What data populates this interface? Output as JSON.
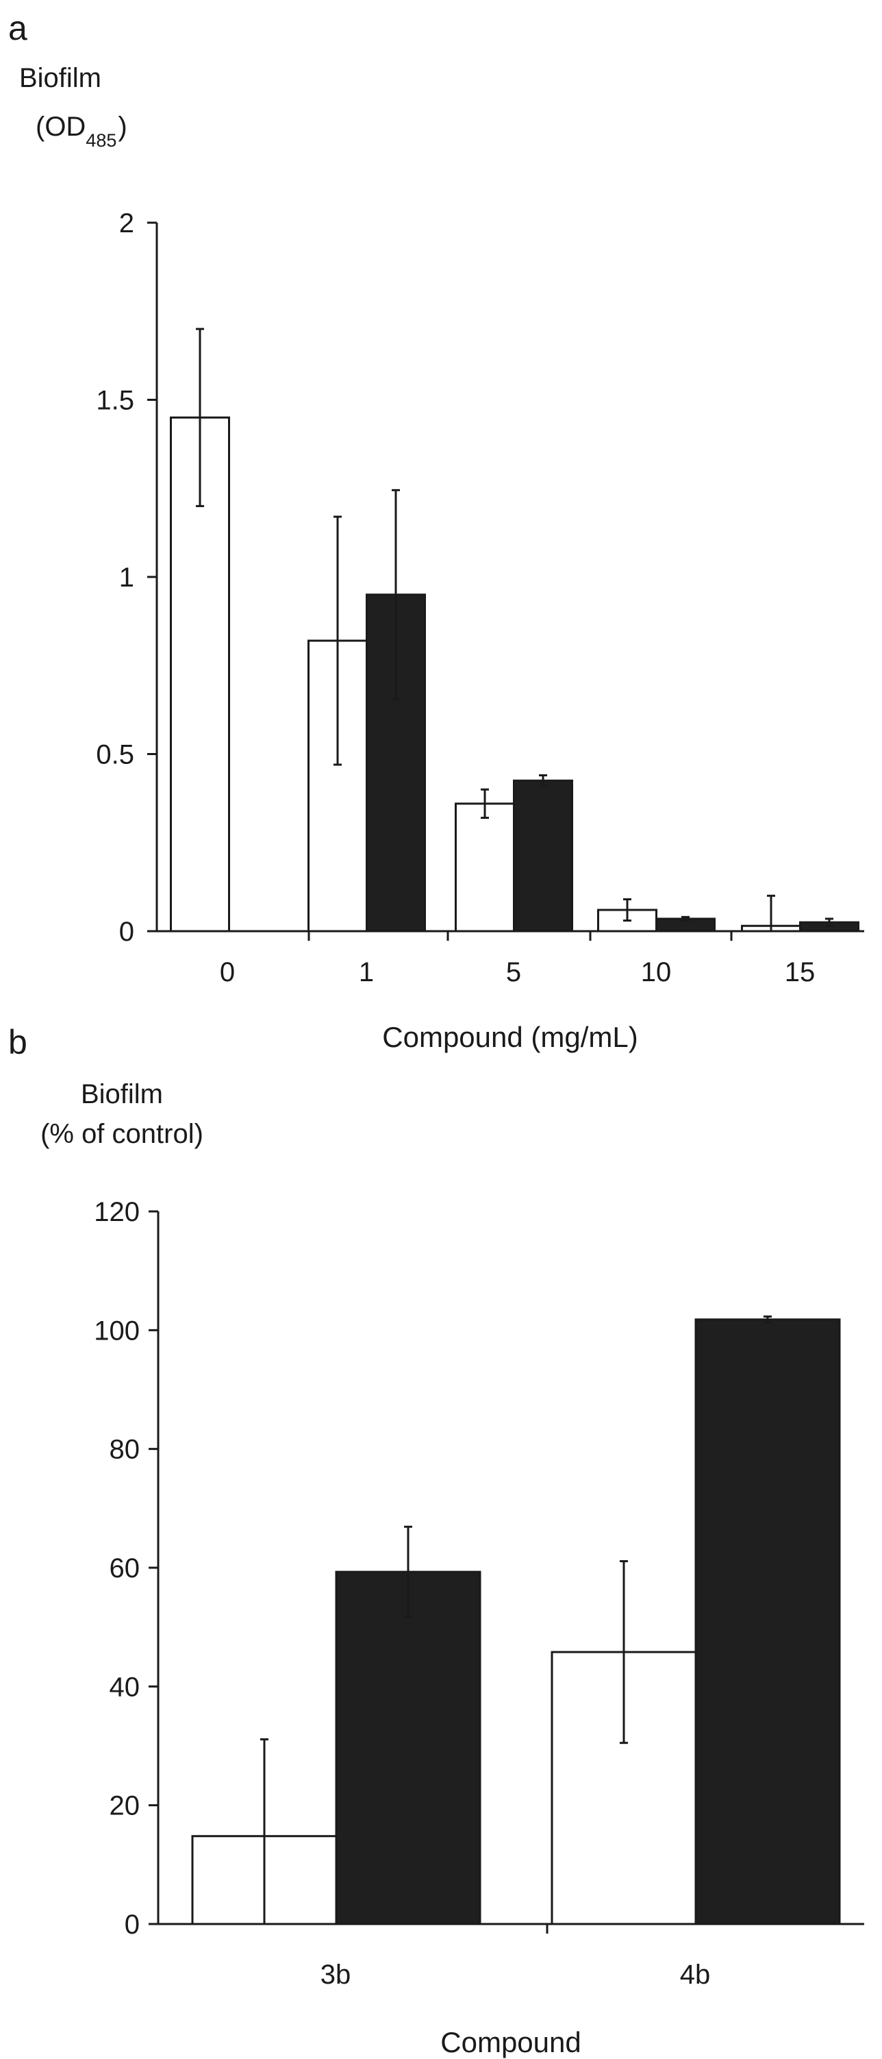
{
  "chart_data": [
    {
      "type": "bar",
      "panel_label": "a",
      "ylabel_line1": "Biofilm",
      "ylabel_line2_main": "(OD",
      "ylabel_line2_sub": "485",
      "ylabel_line2_end": ")",
      "xlabel": "Compound (mg/mL)",
      "ylim": [
        0,
        2
      ],
      "yticks": [
        {
          "value": 0,
          "label": "0"
        },
        {
          "value": 0.5,
          "label": "0.5"
        },
        {
          "value": 1,
          "label": "1"
        },
        {
          "value": 1.5,
          "label": "1.5"
        },
        {
          "value": 2,
          "label": "2"
        }
      ],
      "categories": [
        "0",
        "1",
        "5",
        "10",
        "15"
      ],
      "series": [
        {
          "name": "open",
          "color": "#ffffff",
          "values": [
            1.45,
            0.82,
            0.36,
            0.06,
            0.015
          ],
          "errors": [
            0.25,
            0.35,
            0.04,
            0.03,
            0.085
          ]
        },
        {
          "name": "filled",
          "color": "#1f1f1f",
          "values": [
            null,
            0.95,
            0.425,
            0.035,
            0.025
          ],
          "errors": [
            null,
            0.295,
            0.015,
            0.005,
            0.01
          ]
        }
      ]
    },
    {
      "type": "bar",
      "panel_label": "b",
      "ylabel_line1": "Biofilm",
      "ylabel_line2": "(% of control)",
      "xlabel": "Compound",
      "ylim": [
        0,
        120
      ],
      "yticks": [
        {
          "value": 0,
          "label": "0"
        },
        {
          "value": 20,
          "label": "20"
        },
        {
          "value": 40,
          "label": "40"
        },
        {
          "value": 60,
          "label": "60"
        },
        {
          "value": 80,
          "label": "80"
        },
        {
          "value": 100,
          "label": "100"
        },
        {
          "value": 120,
          "label": "120"
        }
      ],
      "categories": [
        "3b",
        "4b"
      ],
      "series": [
        {
          "name": "open",
          "color": "#ffffff",
          "values": [
            14.8,
            45.8
          ],
          "errors": [
            16.3,
            15.3
          ]
        },
        {
          "name": "filled",
          "color": "#1f1f1f",
          "values": [
            59.3,
            101.8
          ],
          "errors": [
            7.6,
            0.5
          ]
        }
      ]
    }
  ]
}
